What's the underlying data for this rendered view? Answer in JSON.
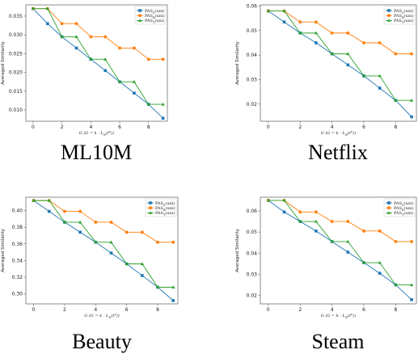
{
  "chart_data": [
    {
      "type": "line",
      "caption": "ML10M",
      "xlabel": "G (G = k - L_N(t^u))",
      "ylabel": "Averaged Similarity",
      "xlim": [
        -0.5,
        9.3
      ],
      "ylim": [
        0.007,
        0.038
      ],
      "xticks": [
        0,
        2,
        4,
        6,
        8
      ],
      "xtick_labels": [
        "0",
        "2",
        "4",
        "6",
        "8"
      ],
      "yticks": [
        0.01,
        0.015,
        0.02,
        0.025,
        0.03,
        0.035
      ],
      "ytick_labels": [
        "0.010",
        "0.015",
        "0.020",
        "0.025",
        "0.030",
        "0.035"
      ],
      "legend": "top-right",
      "x": [
        0,
        1,
        2,
        3,
        4,
        5,
        6,
        7,
        8,
        9
      ],
      "series": [
        {
          "name": "PAS_S(uni)",
          "color": "#1f77b4",
          "marker": "square",
          "values": [
            0.037,
            0.033,
            0.0295,
            0.0265,
            0.0235,
            0.0205,
            0.0175,
            0.0145,
            0.0115,
            0.0078
          ]
        },
        {
          "name": "PAS_B(uni)",
          "color": "#ff7f0e",
          "marker": "circle",
          "values": [
            0.037,
            0.037,
            0.033,
            0.033,
            0.0295,
            0.0295,
            0.0265,
            0.0265,
            0.0235,
            0.0235
          ]
        },
        {
          "name": "PAS_T(uni)",
          "color": "#2ca02c",
          "marker": "triangle",
          "values": [
            0.037,
            0.037,
            0.0295,
            0.0295,
            0.0235,
            0.0235,
            0.0175,
            0.0175,
            0.0115,
            0.0115
          ]
        }
      ]
    },
    {
      "type": "line",
      "caption": "Netflix",
      "xlabel": "G (G = k - L_N(t^u))",
      "ylabel": "Averaged Similarity",
      "xlim": [
        -0.5,
        9.3
      ],
      "ylim": [
        0.013,
        0.0605
      ],
      "xticks": [
        0,
        2,
        4,
        6,
        8
      ],
      "xtick_labels": [
        "0",
        "2",
        "4",
        "6",
        "8"
      ],
      "yticks": [
        0.02,
        0.03,
        0.04,
        0.05,
        0.06
      ],
      "ytick_labels": [
        "0.02",
        "0.03",
        "0.04",
        "0.05",
        "0.06"
      ],
      "legend": "top-right",
      "x": [
        0,
        1,
        2,
        3,
        4,
        5,
        6,
        7,
        8,
        9
      ],
      "series": [
        {
          "name": "PAS_S(uni)",
          "color": "#1f77b4",
          "marker": "square",
          "values": [
            0.058,
            0.0535,
            0.049,
            0.045,
            0.0405,
            0.036,
            0.0315,
            0.0265,
            0.0215,
            0.0148
          ]
        },
        {
          "name": "PAS_B(uni)",
          "color": "#ff7f0e",
          "marker": "circle",
          "values": [
            0.058,
            0.058,
            0.0535,
            0.0535,
            0.049,
            0.049,
            0.045,
            0.045,
            0.0405,
            0.0405
          ]
        },
        {
          "name": "PAS_T(uni)",
          "color": "#2ca02c",
          "marker": "triangle",
          "values": [
            0.058,
            0.058,
            0.049,
            0.049,
            0.0405,
            0.0405,
            0.0315,
            0.0315,
            0.0215,
            0.0215
          ]
        }
      ]
    },
    {
      "type": "line",
      "caption": "Beauty",
      "xlabel": "G (G = k - L_N(t^u))",
      "ylabel": "Averaged Similarity",
      "xlim": [
        -0.5,
        9.3
      ],
      "ylim": [
        0.288,
        0.416
      ],
      "xticks": [
        0,
        2,
        4,
        6,
        8
      ],
      "xtick_labels": [
        "0",
        "2",
        "4",
        "6",
        "8"
      ],
      "yticks": [
        0.3,
        0.32,
        0.34,
        0.36,
        0.38,
        0.4
      ],
      "ytick_labels": [
        "0.30",
        "0.32",
        "0.34",
        "0.36",
        "0.38",
        "0.40"
      ],
      "legend": "top-right",
      "x": [
        0,
        1,
        2,
        3,
        4,
        5,
        6,
        7,
        8,
        9
      ],
      "series": [
        {
          "name": "PAS_S(uni)",
          "color": "#1f77b4",
          "marker": "square",
          "values": [
            0.412,
            0.399,
            0.386,
            0.374,
            0.362,
            0.349,
            0.336,
            0.322,
            0.308,
            0.292
          ]
        },
        {
          "name": "PAS_B(uni)",
          "color": "#ff7f0e",
          "marker": "circle",
          "values": [
            0.412,
            0.412,
            0.399,
            0.399,
            0.386,
            0.386,
            0.374,
            0.374,
            0.362,
            0.362
          ]
        },
        {
          "name": "PAS_T(uni)",
          "color": "#2ca02c",
          "marker": "triangle",
          "values": [
            0.412,
            0.412,
            0.386,
            0.386,
            0.362,
            0.362,
            0.336,
            0.336,
            0.308,
            0.308
          ]
        }
      ]
    },
    {
      "type": "line",
      "caption": "Steam",
      "xlabel": "G (G = k - L_N(t^u))",
      "ylabel": "Averaged Similarity",
      "xlim": [
        -0.5,
        9.3
      ],
      "ylim": [
        0.016,
        0.0665
      ],
      "xticks": [
        0,
        2,
        4,
        6,
        8
      ],
      "xtick_labels": [
        "0",
        "2",
        "4",
        "6",
        "8"
      ],
      "yticks": [
        0.02,
        0.03,
        0.04,
        0.05,
        0.06
      ],
      "ytick_labels": [
        "0.02",
        "0.03",
        "0.04",
        "0.05",
        "0.06"
      ],
      "legend": "top-right",
      "x": [
        0,
        1,
        2,
        3,
        4,
        5,
        6,
        7,
        8,
        9
      ],
      "series": [
        {
          "name": "PAS_S(uni)",
          "color": "#1f77b4",
          "marker": "square",
          "values": [
            0.065,
            0.0595,
            0.055,
            0.0505,
            0.0455,
            0.0405,
            0.0355,
            0.0305,
            0.025,
            0.018
          ]
        },
        {
          "name": "PAS_B(uni)",
          "color": "#ff7f0e",
          "marker": "circle",
          "values": [
            0.065,
            0.065,
            0.0595,
            0.0595,
            0.055,
            0.055,
            0.0505,
            0.0505,
            0.0455,
            0.0455
          ]
        },
        {
          "name": "PAS_T(uni)",
          "color": "#2ca02c",
          "marker": "triangle",
          "values": [
            0.065,
            0.065,
            0.055,
            0.055,
            0.0455,
            0.0455,
            0.0355,
            0.0355,
            0.025,
            0.025
          ]
        }
      ]
    }
  ]
}
